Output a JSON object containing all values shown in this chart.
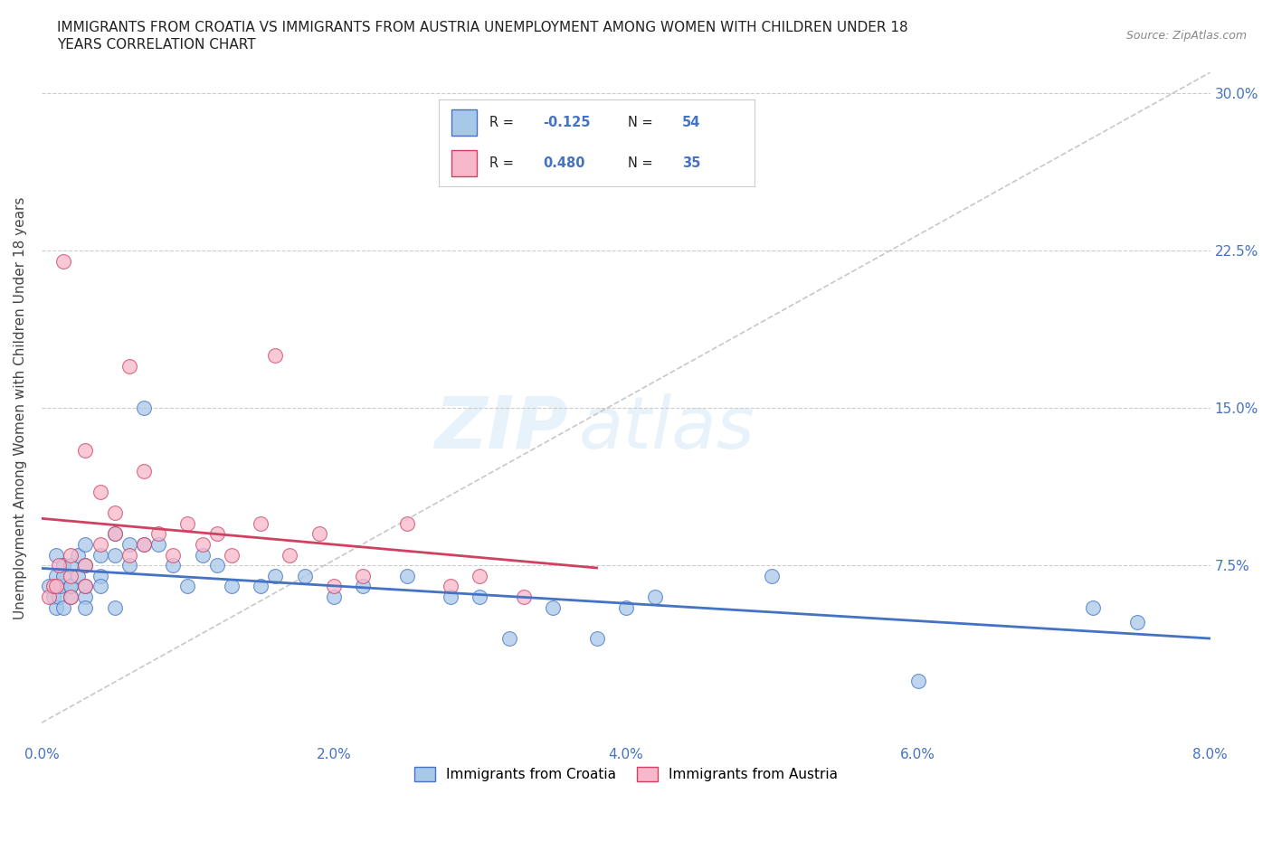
{
  "title_line1": "IMMIGRANTS FROM CROATIA VS IMMIGRANTS FROM AUSTRIA UNEMPLOYMENT AMONG WOMEN WITH CHILDREN UNDER 18",
  "title_line2": "YEARS CORRELATION CHART",
  "source_text": "Source: ZipAtlas.com",
  "ylabel": "Unemployment Among Women with Children Under 18 years",
  "xlim": [
    0.0,
    0.08
  ],
  "ylim": [
    -0.01,
    0.31
  ],
  "xtick_labels": [
    "0.0%",
    "2.0%",
    "4.0%",
    "6.0%",
    "8.0%"
  ],
  "xtick_vals": [
    0.0,
    0.02,
    0.04,
    0.06,
    0.08
  ],
  "ytick_labels": [
    "7.5%",
    "15.0%",
    "22.5%",
    "30.0%"
  ],
  "ytick_vals": [
    0.075,
    0.15,
    0.225,
    0.3
  ],
  "color_croatia": "#a8c8e8",
  "color_austria": "#f8b8cc",
  "line_color_croatia": "#4472c4",
  "line_color_austria": "#d04060",
  "diagonal_color": "#c8c8c8",
  "R_croatia": -0.125,
  "N_croatia": 54,
  "R_austria": 0.48,
  "N_austria": 35,
  "legend_label_croatia": "Immigrants from Croatia",
  "legend_label_austria": "Immigrants from Austria",
  "watermark_zip": "ZIP",
  "watermark_atlas": "atlas",
  "croatia_x": [
    0.0005,
    0.0008,
    0.001,
    0.001,
    0.001,
    0.0012,
    0.0013,
    0.0015,
    0.0015,
    0.0015,
    0.002,
    0.002,
    0.002,
    0.002,
    0.0025,
    0.0025,
    0.003,
    0.003,
    0.003,
    0.003,
    0.003,
    0.004,
    0.004,
    0.004,
    0.005,
    0.005,
    0.005,
    0.006,
    0.006,
    0.007,
    0.007,
    0.008,
    0.009,
    0.01,
    0.011,
    0.012,
    0.013,
    0.015,
    0.016,
    0.018,
    0.02,
    0.022,
    0.025,
    0.028,
    0.03,
    0.032,
    0.035,
    0.038,
    0.04,
    0.042,
    0.05,
    0.06,
    0.072,
    0.075
  ],
  "croatia_y": [
    0.065,
    0.06,
    0.07,
    0.055,
    0.08,
    0.06,
    0.065,
    0.055,
    0.075,
    0.07,
    0.065,
    0.06,
    0.075,
    0.065,
    0.08,
    0.07,
    0.085,
    0.06,
    0.055,
    0.065,
    0.075,
    0.08,
    0.07,
    0.065,
    0.08,
    0.055,
    0.09,
    0.085,
    0.075,
    0.085,
    0.15,
    0.085,
    0.075,
    0.065,
    0.08,
    0.075,
    0.065,
    0.065,
    0.07,
    0.07,
    0.06,
    0.065,
    0.07,
    0.06,
    0.06,
    0.04,
    0.055,
    0.04,
    0.055,
    0.06,
    0.07,
    0.02,
    0.055,
    0.048
  ],
  "austria_x": [
    0.0005,
    0.0008,
    0.001,
    0.0012,
    0.0015,
    0.002,
    0.002,
    0.002,
    0.003,
    0.003,
    0.003,
    0.004,
    0.004,
    0.005,
    0.005,
    0.006,
    0.006,
    0.007,
    0.007,
    0.008,
    0.009,
    0.01,
    0.011,
    0.012,
    0.013,
    0.015,
    0.016,
    0.017,
    0.019,
    0.02,
    0.022,
    0.025,
    0.028,
    0.03,
    0.033
  ],
  "austria_y": [
    0.06,
    0.065,
    0.065,
    0.075,
    0.22,
    0.06,
    0.07,
    0.08,
    0.065,
    0.075,
    0.13,
    0.085,
    0.11,
    0.09,
    0.1,
    0.08,
    0.17,
    0.085,
    0.12,
    0.09,
    0.08,
    0.095,
    0.085,
    0.09,
    0.08,
    0.095,
    0.175,
    0.08,
    0.09,
    0.065,
    0.07,
    0.095,
    0.065,
    0.07,
    0.06
  ]
}
